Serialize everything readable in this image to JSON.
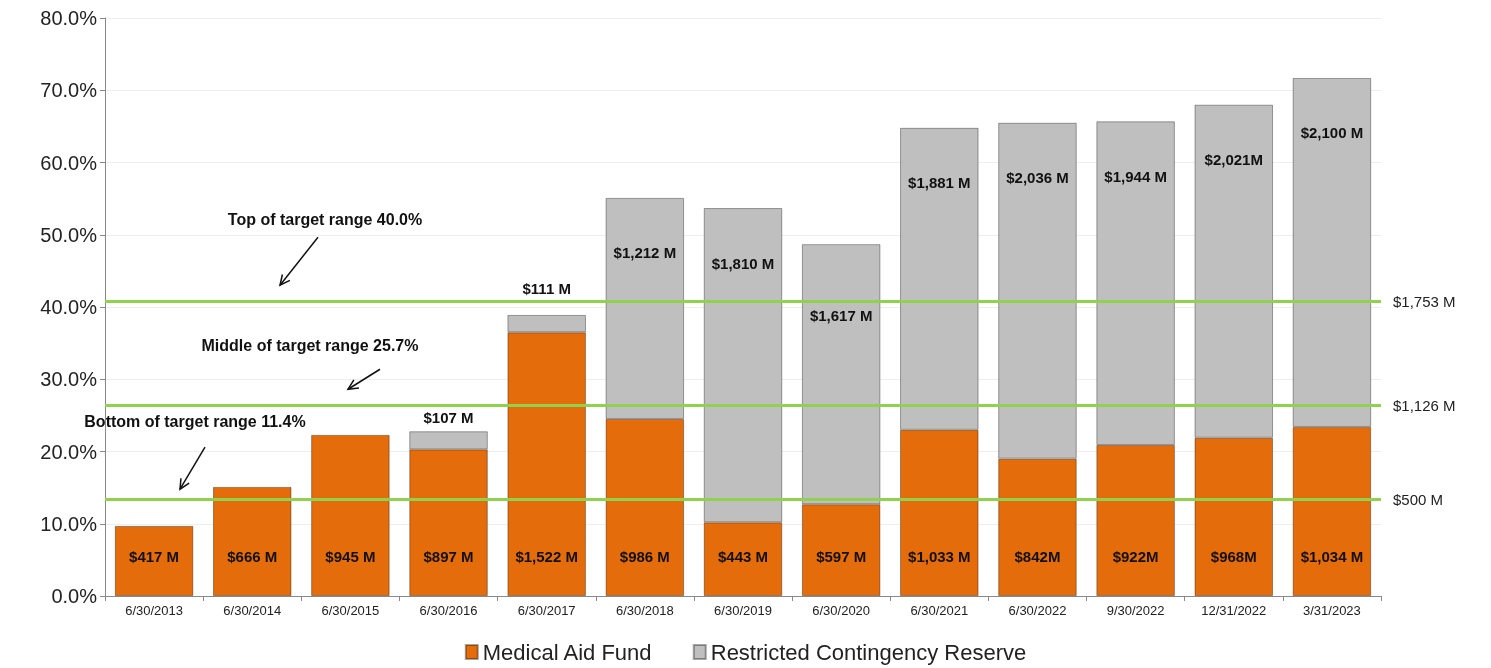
{
  "chart_data": {
    "type": "bar",
    "stacked": true,
    "categories": [
      "6/30/2013",
      "6/30/2014",
      "6/30/2015",
      "6/30/2016",
      "6/30/2017",
      "6/30/2018",
      "6/30/2019",
      "6/30/2020",
      "6/30/2021",
      "6/30/2022",
      "9/30/2022",
      "12/31/2022",
      "3/31/2023"
    ],
    "series": [
      {
        "name": "Medical Aid Fund",
        "color": "#e46c0a",
        "values": [
          9.7,
          15.1,
          22.3,
          20.3,
          36.5,
          24.5,
          10.2,
          12.7,
          23.0,
          19.0,
          20.9,
          21.9,
          23.4
        ]
      },
      {
        "name": "Restricted Contingency Reserve",
        "color": "#bfbfbf",
        "values": [
          null,
          null,
          null,
          2.5,
          2.4,
          30.6,
          43.5,
          36.0,
          41.8,
          46.5,
          44.8,
          46.1,
          48.3
        ]
      }
    ],
    "ylim": [
      0,
      80
    ],
    "yticks": [
      {
        "value": 0,
        "label": "0.0%"
      },
      {
        "value": 10,
        "label": "10.0%"
      },
      {
        "value": 20,
        "label": "20.0%"
      },
      {
        "value": 30,
        "label": "30.0%"
      },
      {
        "value": 40,
        "label": "40.0%"
      },
      {
        "value": 50,
        "label": "50.0%"
      },
      {
        "value": 60,
        "label": "60.0%"
      },
      {
        "value": 70,
        "label": "70.0%"
      },
      {
        "value": 80,
        "label": "80.0%"
      }
    ],
    "grid": "y",
    "legend": "bottom",
    "ref_lines": [
      {
        "axis": "y",
        "value": 40.8,
        "label": "$1,753 M",
        "color": "#92d050"
      },
      {
        "axis": "y",
        "value": 26.4,
        "label": "$1,126 M",
        "color": "#92d050"
      },
      {
        "axis": "y",
        "value": 13.4,
        "label": "$500 M",
        "color": "#92d050"
      }
    ],
    "annotations": [
      "Top of target range 40.0%",
      "Middle of target range 25.7%",
      "Bottom of target range 11.4%",
      "$417 M",
      "$666 M",
      "$945 M",
      "$897 M",
      "$1,522 M",
      "$986 M",
      "$443 M",
      "$597 M",
      "$1,033 M",
      "$842M",
      "$922M",
      "$968M",
      "$1,034 M",
      "$107 M",
      "$111 M",
      "$1,212 M",
      "$1,810 M",
      "$1,617 M",
      "$1,881 M",
      "$2,036 M",
      "$1,944 M",
      "$2,021M",
      "$2,100 M"
    ]
  }
}
